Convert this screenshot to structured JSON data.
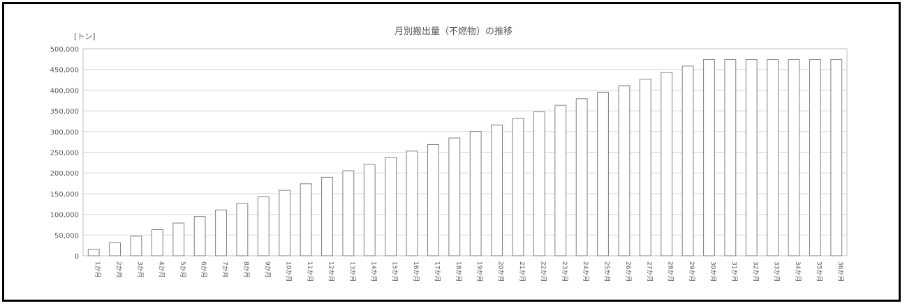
{
  "chart_data": {
    "type": "bar",
    "title": "月別搬出量（不燃物）の推移",
    "ylabel": "[トン]",
    "xlabel": "",
    "ylim": [
      0,
      500000
    ],
    "yticks": [
      "0",
      "50,000",
      "100,000",
      "150,000",
      "200,000",
      "250,000",
      "300,000",
      "350,000",
      "400,000",
      "450,000",
      "500,000"
    ],
    "grid": true,
    "categories": [
      "1か月",
      "2か月",
      "3か月",
      "4か月",
      "5か月",
      "6か月",
      "7か月",
      "8か月",
      "9か月",
      "10か月",
      "11か月",
      "12か月",
      "13か月",
      "14か月",
      "15か月",
      "16か月",
      "17か月",
      "18か月",
      "19か月",
      "20か月",
      "21か月",
      "22か月",
      "23か月",
      "24か月",
      "25か月",
      "26か月",
      "27か月",
      "28か月",
      "29か月",
      "30か月",
      "31か月",
      "32か月",
      "33か月",
      "34か月",
      "35か月",
      "36か月"
    ],
    "values": [
      15800,
      31600,
      47400,
      63200,
      79000,
      94800,
      110600,
      126400,
      142200,
      158000,
      173800,
      189600,
      205400,
      221200,
      237000,
      252800,
      268600,
      284400,
      300200,
      316000,
      331800,
      347600,
      363400,
      379200,
      395000,
      410800,
      426600,
      442400,
      458200,
      474000,
      474000,
      474000,
      474000,
      474000,
      474000,
      474000
    ],
    "bar_fill": "#ffffff",
    "bar_stroke": "#7f7f7f",
    "grid_color": "#d9d9d9"
  }
}
